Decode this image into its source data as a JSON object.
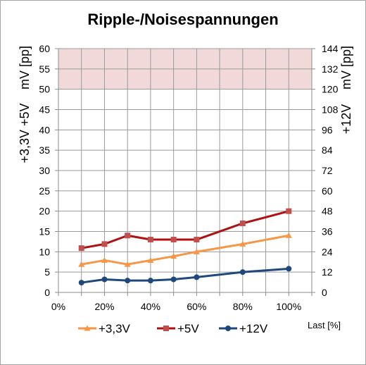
{
  "chart_data": {
    "type": "line",
    "title": "Ripple-/Noisespannungen",
    "xlabel": "Last [%]",
    "ylabel_left_top": "mV [pp]",
    "ylabel_left_bottom": "+3,3V +5V",
    "ylabel_right_top": "mV [pp]",
    "ylabel_right_bottom": "+12V",
    "xlim": [
      0,
      110
    ],
    "ylim_left": [
      0,
      60
    ],
    "ylim_right": [
      0,
      144
    ],
    "x_ticks": [
      "0%",
      "20%",
      "40%",
      "60%",
      "80%",
      "100%"
    ],
    "y_ticks_left": [
      "0",
      "5",
      "10",
      "15",
      "20",
      "25",
      "30",
      "35",
      "40",
      "45",
      "50",
      "55",
      "60"
    ],
    "y_ticks_right": [
      "0",
      "12",
      "24",
      "36",
      "48",
      "60",
      "72",
      "84",
      "96",
      "108",
      "120",
      "132",
      "144"
    ],
    "limit_band_left": [
      50,
      60
    ],
    "grid": true,
    "legend_position": "bottom",
    "series": [
      {
        "name": "+3,3V",
        "axis": "left",
        "color": "#f79646",
        "marker": "triangle",
        "x": [
          10,
          20,
          30,
          40,
          50,
          60,
          80,
          100
        ],
        "values": [
          6.9,
          7.9,
          6.9,
          7.9,
          8.9,
          10,
          11.9,
          14
        ]
      },
      {
        "name": "+5V",
        "axis": "left",
        "color": "#c0504d",
        "line_color": "#b01010",
        "marker": "square",
        "x": [
          10,
          20,
          30,
          40,
          50,
          60,
          80,
          100
        ],
        "values": [
          10.9,
          11.9,
          14,
          13,
          13,
          13,
          17,
          20
        ]
      },
      {
        "name": "+12V",
        "axis": "right",
        "color": "#1f497d",
        "marker": "circle",
        "x": [
          10,
          20,
          30,
          40,
          50,
          60,
          80,
          100
        ],
        "values": [
          5.8,
          7.7,
          7,
          7,
          7.7,
          9,
          12,
          14
        ]
      }
    ]
  }
}
